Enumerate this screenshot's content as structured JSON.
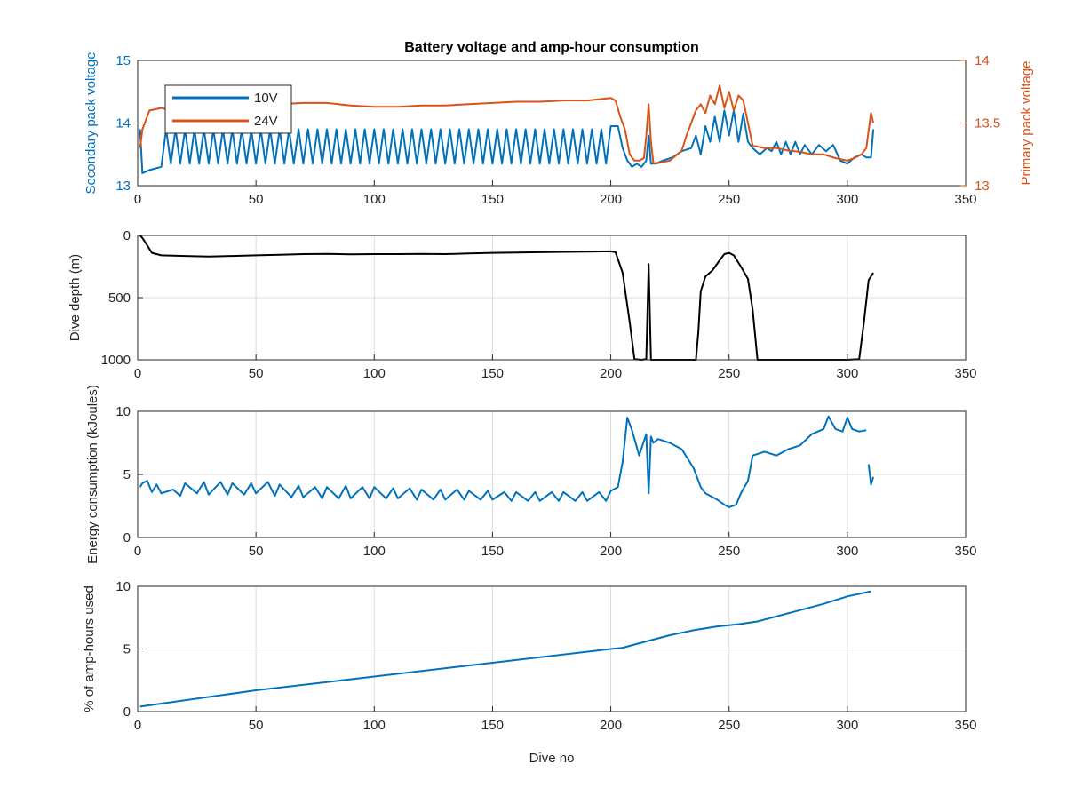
{
  "chart_data": [
    {
      "type": "line",
      "title": "Battery voltage and amp-hour consumption",
      "xlabel": "",
      "ylabel": "Secondary pack voltage",
      "ylabel_right": "Primary pack voltage",
      "xlim": [
        0,
        350
      ],
      "ylim": [
        13,
        15
      ],
      "ylim_right": [
        13,
        14
      ],
      "xticks": [
        0,
        50,
        100,
        150,
        200,
        250,
        300,
        350
      ],
      "yticks": [
        13,
        14,
        15
      ],
      "yticks_right": [
        13,
        13.5,
        14
      ],
      "grid": false,
      "legend": {
        "position": "top-left",
        "entries": [
          "10V",
          "24V"
        ]
      },
      "series": [
        {
          "name": "10V",
          "axis": "left",
          "color": "#0072bd",
          "x": [
            1,
            2,
            5,
            10,
            12,
            14,
            16,
            18,
            20,
            22,
            24,
            26,
            28,
            30,
            32,
            34,
            36,
            38,
            40,
            42,
            44,
            46,
            48,
            50,
            52,
            54,
            56,
            58,
            60,
            62,
            64,
            66,
            68,
            70,
            72,
            74,
            76,
            78,
            80,
            82,
            84,
            86,
            88,
            90,
            92,
            94,
            96,
            98,
            100,
            102,
            104,
            106,
            108,
            110,
            112,
            114,
            116,
            118,
            120,
            122,
            124,
            126,
            128,
            130,
            132,
            134,
            136,
            138,
            140,
            142,
            144,
            146,
            148,
            150,
            152,
            154,
            156,
            158,
            160,
            162,
            164,
            166,
            168,
            170,
            172,
            174,
            176,
            178,
            180,
            182,
            184,
            186,
            188,
            190,
            192,
            194,
            196,
            198,
            200,
            203,
            205,
            207,
            209,
            211,
            213,
            215,
            216,
            217,
            219,
            222,
            226,
            230,
            234,
            236,
            238,
            240,
            242,
            244,
            246,
            248,
            250,
            252,
            254,
            256,
            258,
            260,
            263,
            266,
            268,
            270,
            272,
            274,
            276,
            278,
            280,
            282,
            285,
            288,
            291,
            294,
            297,
            300,
            303,
            306,
            308,
            310,
            311
          ],
          "y": [
            13.9,
            13.2,
            13.25,
            13.3,
            13.9,
            13.35,
            13.9,
            13.35,
            13.9,
            13.35,
            13.9,
            13.35,
            13.9,
            13.35,
            13.9,
            13.35,
            13.9,
            13.35,
            13.9,
            13.35,
            13.9,
            13.35,
            13.9,
            13.35,
            13.9,
            13.35,
            13.9,
            13.35,
            13.9,
            13.35,
            13.9,
            13.35,
            13.9,
            13.35,
            13.9,
            13.35,
            13.9,
            13.35,
            13.9,
            13.35,
            13.9,
            13.35,
            13.9,
            13.35,
            13.9,
            13.35,
            13.9,
            13.35,
            13.9,
            13.35,
            13.9,
            13.35,
            13.9,
            13.35,
            13.9,
            13.35,
            13.9,
            13.35,
            13.9,
            13.35,
            13.9,
            13.35,
            13.9,
            13.35,
            13.9,
            13.35,
            13.9,
            13.35,
            13.9,
            13.35,
            13.9,
            13.35,
            13.9,
            13.35,
            13.9,
            13.35,
            13.9,
            13.35,
            13.9,
            13.35,
            13.9,
            13.35,
            13.9,
            13.35,
            13.9,
            13.35,
            13.9,
            13.35,
            13.9,
            13.35,
            13.9,
            13.35,
            13.9,
            13.35,
            13.9,
            13.35,
            13.9,
            13.35,
            13.95,
            13.95,
            13.6,
            13.4,
            13.3,
            13.35,
            13.3,
            13.4,
            13.8,
            13.35,
            13.35,
            13.4,
            13.45,
            13.55,
            13.6,
            13.8,
            13.5,
            13.95,
            13.7,
            14.1,
            13.7,
            14.2,
            13.8,
            14.2,
            13.7,
            14.15,
            13.7,
            13.6,
            13.5,
            13.6,
            13.55,
            13.7,
            13.5,
            13.7,
            13.5,
            13.7,
            13.5,
            13.65,
            13.5,
            13.65,
            13.55,
            13.65,
            13.4,
            13.35,
            13.45,
            13.5,
            13.45,
            13.45,
            13.9
          ]
        },
        {
          "name": "24V",
          "axis": "right",
          "color": "#d95319",
          "x": [
            1,
            2,
            5,
            10,
            15,
            20,
            30,
            40,
            50,
            60,
            70,
            80,
            90,
            100,
            110,
            120,
            130,
            140,
            150,
            160,
            170,
            180,
            190,
            200,
            202,
            204,
            206,
            208,
            210,
            212,
            214,
            215,
            216,
            217,
            218,
            220,
            225,
            230,
            232,
            234,
            236,
            238,
            240,
            242,
            244,
            246,
            248,
            250,
            252,
            254,
            256,
            258,
            260,
            265,
            270,
            275,
            280,
            285,
            290,
            295,
            300,
            303,
            306,
            308,
            310,
            311
          ],
          "y": [
            13.3,
            13.45,
            13.6,
            13.62,
            13.6,
            13.62,
            13.63,
            13.64,
            13.65,
            13.65,
            13.66,
            13.66,
            13.64,
            13.63,
            13.63,
            13.64,
            13.64,
            13.65,
            13.66,
            13.67,
            13.67,
            13.68,
            13.68,
            13.7,
            13.68,
            13.55,
            13.45,
            13.25,
            13.2,
            13.2,
            13.22,
            13.4,
            13.65,
            13.35,
            13.18,
            13.18,
            13.2,
            13.28,
            13.4,
            13.5,
            13.6,
            13.65,
            13.58,
            13.72,
            13.65,
            13.8,
            13.62,
            13.75,
            13.6,
            13.72,
            13.68,
            13.5,
            13.32,
            13.3,
            13.3,
            13.28,
            13.27,
            13.25,
            13.25,
            13.22,
            13.2,
            13.22,
            13.25,
            13.3,
            13.58,
            13.5
          ]
        }
      ]
    },
    {
      "type": "line",
      "title": "",
      "xlabel": "",
      "ylabel": "Dive depth (m)",
      "xlim": [
        0,
        350
      ],
      "ylim": [
        0,
        1000
      ],
      "y_reversed": true,
      "xticks": [
        0,
        50,
        100,
        150,
        200,
        250,
        300,
        350
      ],
      "yticks": [
        0,
        500,
        1000
      ],
      "grid": true,
      "series": [
        {
          "name": "",
          "color": "#000000",
          "x": [
            1,
            2,
            4,
            6,
            10,
            20,
            30,
            40,
            50,
            60,
            70,
            80,
            90,
            100,
            110,
            120,
            130,
            140,
            150,
            160,
            170,
            180,
            190,
            200,
            202,
            205,
            208,
            210,
            213,
            215,
            216,
            217,
            218,
            220,
            225,
            230,
            236,
            237,
            238,
            240,
            243,
            246,
            248,
            250,
            252,
            255,
            258,
            260,
            262,
            270,
            280,
            290,
            300,
            305,
            307,
            309,
            311
          ],
          "y": [
            0,
            20,
            80,
            140,
            160,
            165,
            170,
            165,
            160,
            155,
            150,
            148,
            152,
            150,
            150,
            148,
            150,
            145,
            140,
            138,
            135,
            132,
            130,
            128,
            135,
            300,
            700,
            995,
            1000,
            995,
            230,
            1000,
            1000,
            1000,
            1000,
            1000,
            1000,
            780,
            450,
            330,
            280,
            200,
            150,
            140,
            160,
            250,
            350,
            600,
            1000,
            1000,
            1000,
            1000,
            1000,
            995,
            700,
            360,
            300
          ]
        }
      ]
    },
    {
      "type": "line",
      "title": "",
      "xlabel": "",
      "ylabel": "Energy consumption (kJoules)",
      "xlim": [
        0,
        350
      ],
      "ylim": [
        0,
        10
      ],
      "xticks": [
        0,
        50,
        100,
        150,
        200,
        250,
        300,
        350
      ],
      "yticks": [
        0,
        5,
        10
      ],
      "grid": true,
      "series": [
        {
          "name": "",
          "color": "#0072bd",
          "x": [
            1,
            2,
            4,
            6,
            8,
            10,
            15,
            18,
            20,
            25,
            28,
            30,
            35,
            38,
            40,
            45,
            48,
            50,
            55,
            58,
            60,
            65,
            68,
            70,
            75,
            78,
            80,
            85,
            88,
            90,
            95,
            98,
            100,
            105,
            108,
            110,
            115,
            118,
            120,
            125,
            128,
            130,
            135,
            138,
            140,
            145,
            148,
            150,
            155,
            158,
            160,
            165,
            168,
            170,
            175,
            178,
            180,
            185,
            188,
            190,
            195,
            198,
            200,
            203,
            205,
            207,
            209,
            212,
            215,
            216,
            217,
            218,
            220,
            225,
            230,
            235,
            238,
            240,
            245,
            248,
            250,
            253,
            255,
            258,
            260,
            265,
            270,
            275,
            280,
            285,
            290,
            292,
            295,
            298,
            300,
            302,
            305,
            308
          ],
          "y": [
            4.0,
            4.3,
            4.5,
            3.6,
            4.2,
            3.5,
            3.8,
            3.3,
            4.3,
            3.5,
            4.4,
            3.4,
            4.4,
            3.4,
            4.3,
            3.4,
            4.3,
            3.5,
            4.4,
            3.3,
            4.2,
            3.2,
            4.1,
            3.2,
            4.0,
            3.1,
            4.0,
            3.1,
            4.1,
            3.1,
            4.0,
            3.1,
            4.0,
            3.1,
            3.9,
            3.1,
            3.9,
            3.0,
            3.8,
            3.0,
            3.8,
            3.0,
            3.8,
            3.0,
            3.7,
            3.0,
            3.7,
            3.0,
            3.6,
            2.9,
            3.6,
            2.9,
            3.6,
            2.9,
            3.6,
            2.9,
            3.6,
            2.9,
            3.6,
            2.9,
            3.6,
            2.9,
            3.7,
            4.0,
            6.0,
            9.5,
            8.5,
            6.5,
            8.2,
            3.5,
            8.0,
            7.5,
            7.8,
            7.5,
            7.0,
            5.5,
            4.0,
            3.5,
            3.0,
            2.6,
            2.4,
            2.6,
            3.5,
            4.5,
            6.5,
            6.8,
            6.5,
            7.0,
            7.3,
            8.2,
            8.6,
            9.6,
            8.6,
            8.4,
            9.5,
            8.6,
            8.4,
            8.5
          ]
        },
        {
          "name": "",
          "color": "#0072bd",
          "x": [
            309,
            310,
            311
          ],
          "y": [
            5.8,
            4.2,
            4.8
          ]
        }
      ]
    },
    {
      "type": "line",
      "title": "",
      "xlabel": "Dive no",
      "ylabel": "% of amp-hours used",
      "xlim": [
        0,
        350
      ],
      "ylim": [
        0,
        10
      ],
      "xticks": [
        0,
        50,
        100,
        150,
        200,
        250,
        300,
        350
      ],
      "yticks": [
        0,
        5,
        10
      ],
      "grid": true,
      "series": [
        {
          "name": "",
          "color": "#0072bd",
          "x": [
            1,
            50,
            100,
            150,
            200,
            205,
            215,
            225,
            235,
            245,
            250,
            255,
            262,
            270,
            280,
            290,
            300,
            310
          ],
          "y": [
            0.4,
            1.7,
            2.8,
            3.9,
            5.0,
            5.1,
            5.6,
            6.1,
            6.5,
            6.8,
            6.9,
            7.0,
            7.2,
            7.6,
            8.1,
            8.6,
            9.2,
            9.6
          ]
        }
      ]
    }
  ]
}
